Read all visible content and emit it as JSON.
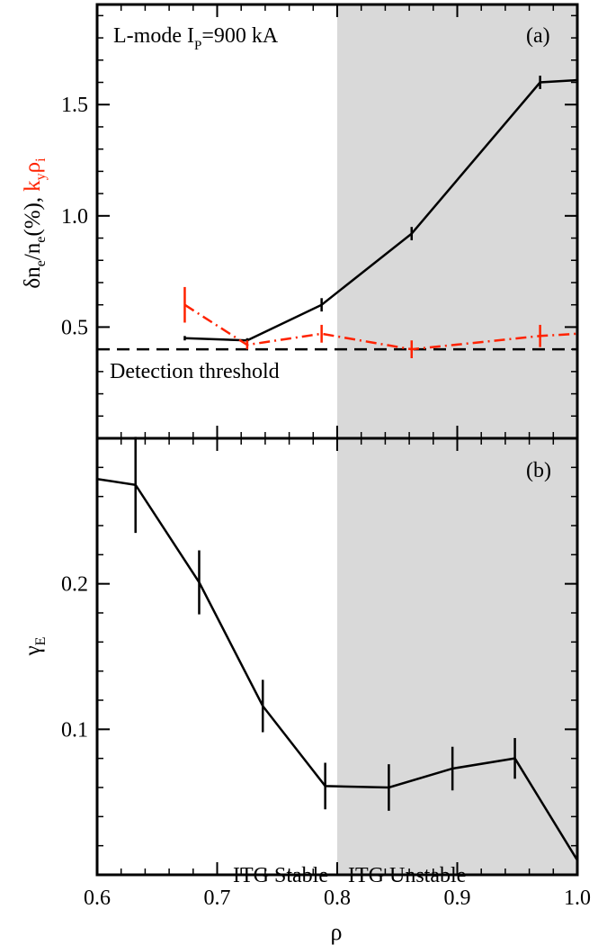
{
  "chart_data": [
    {
      "panel": "(a)",
      "type": "line",
      "annotation": "L-mode I",
      "annotation_sub": "P",
      "annotation_tail": "=900 kA",
      "threshold_label": "Detection threshold",
      "threshold_value": 0.4,
      "xlim": [
        0.6,
        1.0
      ],
      "ylim": [
        0.0,
        1.95
      ],
      "yticks": [
        0.5,
        1.0,
        1.5
      ],
      "ytick_labels": [
        "0.5",
        "1.0",
        "1.5"
      ],
      "ylabel_parts": {
        "black": [
          "δn",
          "e",
          "/n",
          "e",
          "(%),"
        ],
        "red": [
          "k",
          "y",
          "ρ",
          "i"
        ]
      },
      "shaded_region": [
        0.8,
        1.0
      ],
      "series": [
        {
          "color": "#000000",
          "linestyle": "solid",
          "x": [
            0.673,
            0.725,
            0.787,
            0.862,
            0.969,
            1.0
          ],
          "y": [
            0.45,
            0.44,
            0.6,
            0.92,
            1.6,
            1.61
          ],
          "err": [
            0.01,
            0.01,
            0.03,
            0.03,
            0.03,
            0
          ]
        },
        {
          "color": "#ff2200",
          "linestyle": "dashdot",
          "x": [
            0.673,
            0.725,
            0.787,
            0.862,
            0.969,
            1.0
          ],
          "y": [
            0.6,
            0.42,
            0.47,
            0.4,
            0.46,
            0.47
          ],
          "err": [
            0.08,
            0.02,
            0.04,
            0.04,
            0.05,
            0
          ]
        }
      ]
    },
    {
      "panel": "(b)",
      "type": "line",
      "xlabel": "ρ",
      "ylabel": "γ",
      "ylabel_sub": "E",
      "xlim": [
        0.6,
        1.0
      ],
      "ylim": [
        0.0,
        0.3
      ],
      "xticks": [
        0.6,
        0.7,
        0.8,
        0.9,
        1.0
      ],
      "xtick_labels": [
        "0.6",
        "0.7",
        "0.8",
        "0.9",
        "1.0"
      ],
      "yticks": [
        0.1,
        0.2
      ],
      "ytick_labels": [
        "0.1",
        "0.2"
      ],
      "region_labels": {
        "left": "ITG Stable",
        "right": "ITG Unstable"
      },
      "shaded_region": [
        0.8,
        1.0
      ],
      "series": [
        {
          "color": "#000000",
          "x": [
            0.6,
            0.632,
            0.685,
            0.738,
            0.79,
            0.843,
            0.896,
            0.948,
            1.0
          ],
          "y": [
            0.272,
            0.268,
            0.201,
            0.116,
            0.061,
            0.06,
            0.073,
            0.08,
            0.01
          ],
          "err": [
            0,
            0.033,
            0.022,
            0.018,
            0.016,
            0.016,
            0.015,
            0.014,
            0
          ]
        }
      ]
    }
  ]
}
